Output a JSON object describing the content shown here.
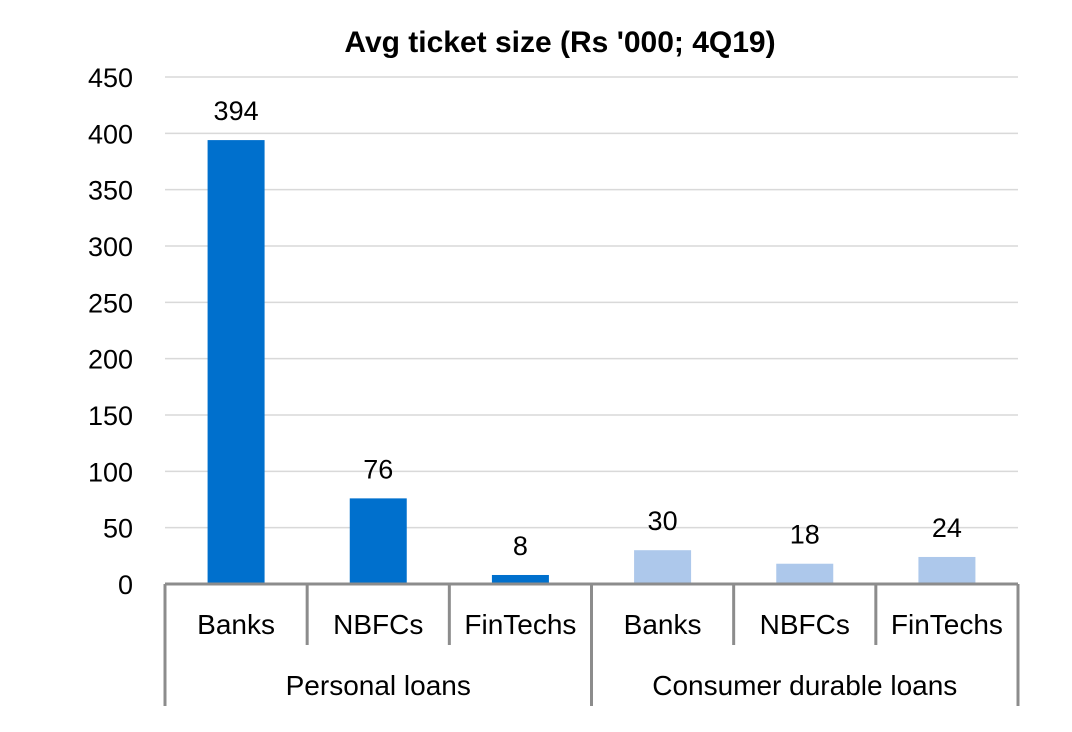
{
  "chart_data": {
    "type": "bar",
    "title": "Avg ticket size (Rs '000; 4Q19)",
    "xlabel": "",
    "ylabel": "",
    "ylim": [
      0,
      450
    ],
    "yticks": [
      0,
      50,
      100,
      150,
      200,
      250,
      300,
      350,
      400,
      450
    ],
    "grid": true,
    "legend": "none",
    "categories": [
      "Banks",
      "NBFCs",
      "FinTechs",
      "Banks",
      "NBFCs",
      "FinTechs"
    ],
    "groups": [
      {
        "label": "Personal loans",
        "span": [
          0,
          2
        ]
      },
      {
        "label": "Consumer durable loans",
        "span": [
          3,
          5
        ]
      }
    ],
    "values": [
      394,
      76,
      8,
      30,
      18,
      24
    ],
    "data_labels": [
      "394",
      "76",
      "8",
      "30",
      "18",
      "24"
    ],
    "colors": [
      "#0070cd",
      "#0070cd",
      "#0070cd",
      "#adc8eb",
      "#adc8eb",
      "#adc8eb"
    ]
  }
}
